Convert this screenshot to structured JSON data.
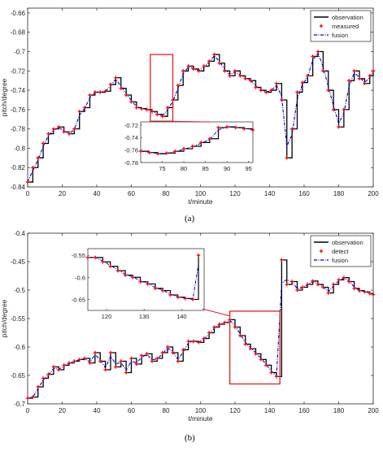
{
  "colors": {
    "observation": "#000000",
    "measured": "#ff0000",
    "fusion": "#0000cc",
    "zoom_box": "#e02020",
    "axes": "#262626"
  },
  "chart_data": [
    {
      "id": "a",
      "panel_label": "(a)",
      "type": "line",
      "xlabel": "t/minute",
      "ylabel": "pitch/degree",
      "xlim": [
        0,
        200
      ],
      "ylim": [
        -0.84,
        -0.655
      ],
      "xticks": [
        "0",
        "20",
        "40",
        "60",
        "80",
        "100",
        "120",
        "140",
        "160",
        "180",
        "200"
      ],
      "yticks": [
        "-0.84",
        "-0.82",
        "-0.8",
        "-0.78",
        "-0.76",
        "-0.74",
        "-0.72",
        "-0.7",
        "-0.68",
        "-0.66"
      ],
      "ytick_values": [
        -0.84,
        -0.82,
        -0.8,
        -0.78,
        -0.76,
        -0.74,
        -0.72,
        -0.7,
        -0.68,
        -0.66
      ],
      "legend_position": "top-right",
      "series": [
        {
          "name": "observation",
          "style": "step"
        },
        {
          "name": "measured",
          "style": "markers"
        },
        {
          "name": "fusion",
          "style": "dash-dot"
        }
      ],
      "x": [
        0,
        3,
        6,
        9,
        12,
        15,
        18,
        21,
        24,
        27,
        30,
        33,
        36,
        39,
        42,
        45,
        48,
        51,
        54,
        57,
        60,
        63,
        66,
        69,
        72,
        75,
        78,
        81,
        84,
        87,
        90,
        93,
        96,
        99,
        102,
        105,
        108,
        111,
        114,
        117,
        120,
        123,
        126,
        129,
        132,
        135,
        138,
        141,
        144,
        147,
        150,
        153,
        156,
        159,
        162,
        165,
        168,
        171,
        174,
        177,
        180,
        183,
        186,
        189,
        192,
        195,
        198,
        200
      ],
      "y": [
        -0.835,
        -0.82,
        -0.81,
        -0.795,
        -0.785,
        -0.78,
        -0.778,
        -0.783,
        -0.785,
        -0.78,
        -0.762,
        -0.758,
        -0.745,
        -0.742,
        -0.742,
        -0.741,
        -0.734,
        -0.727,
        -0.738,
        -0.745,
        -0.752,
        -0.758,
        -0.759,
        -0.76,
        -0.762,
        -0.765,
        -0.767,
        -0.758,
        -0.75,
        -0.735,
        -0.72,
        -0.715,
        -0.718,
        -0.72,
        -0.715,
        -0.71,
        -0.703,
        -0.712,
        -0.72,
        -0.725,
        -0.72,
        -0.725,
        -0.728,
        -0.73,
        -0.737,
        -0.74,
        -0.742,
        -0.74,
        -0.733,
        -0.75,
        -0.81,
        -0.78,
        -0.742,
        -0.732,
        -0.725,
        -0.705,
        -0.7,
        -0.72,
        -0.74,
        -0.76,
        -0.778,
        -0.76,
        -0.73,
        -0.72,
        -0.728,
        -0.733,
        -0.725,
        -0.72
      ],
      "inset": {
        "xlim": [
          70,
          96
        ],
        "ylim": [
          -0.78,
          -0.715
        ],
        "xticks": [
          "75",
          "80",
          "85",
          "90",
          "95"
        ],
        "xtick_values": [
          75,
          80,
          85,
          90,
          95
        ],
        "yticks": [
          "-0.72",
          "-0.74",
          "-0.76",
          "-0.78"
        ],
        "ytick_values": [
          -0.72,
          -0.74,
          -0.76,
          -0.78
        ],
        "x": [
          70,
          72,
          74,
          76,
          78,
          80,
          82,
          84,
          86,
          88,
          90,
          92,
          94,
          96
        ],
        "y": [
          -0.762,
          -0.764,
          -0.766,
          -0.765,
          -0.762,
          -0.758,
          -0.754,
          -0.748,
          -0.742,
          -0.724,
          -0.723,
          -0.724,
          -0.726,
          -0.728
        ],
        "zoom_region": {
          "x": [
            71,
            84
          ],
          "y": [
            -0.772,
            -0.703
          ]
        }
      }
    },
    {
      "id": "b",
      "panel_label": "(b)",
      "type": "line",
      "xlabel": "t/minute",
      "ylabel": "pitch/degree",
      "xlim": [
        0,
        200
      ],
      "ylim": [
        -0.7,
        -0.4
      ],
      "xticks": [
        "0",
        "20",
        "40",
        "60",
        "80",
        "100",
        "120",
        "140",
        "160",
        "180",
        "200"
      ],
      "yticks": [
        "-0.7",
        "-0.65",
        "-0.6",
        "-0.55",
        "-0.5",
        "-0.45",
        "-0.4"
      ],
      "ytick_values": [
        -0.7,
        -0.65,
        -0.6,
        -0.55,
        -0.5,
        -0.45,
        -0.4
      ],
      "legend_position": "top-right",
      "series": [
        {
          "name": "observation",
          "style": "step"
        },
        {
          "name": "detect",
          "style": "markers"
        },
        {
          "name": "fusion",
          "style": "dash-dot"
        }
      ],
      "x": [
        0,
        3,
        6,
        9,
        12,
        15,
        18,
        21,
        24,
        27,
        30,
        33,
        36,
        39,
        42,
        45,
        48,
        51,
        54,
        57,
        60,
        63,
        66,
        69,
        72,
        75,
        78,
        81,
        84,
        87,
        90,
        93,
        96,
        99,
        102,
        105,
        108,
        111,
        114,
        117,
        120,
        123,
        126,
        129,
        132,
        135,
        138,
        141,
        144,
        147,
        150,
        153,
        156,
        159,
        162,
        165,
        168,
        171,
        174,
        177,
        180,
        183,
        186,
        189,
        192,
        195,
        198,
        200
      ],
      "y": [
        -0.69,
        -0.688,
        -0.67,
        -0.655,
        -0.648,
        -0.635,
        -0.64,
        -0.632,
        -0.628,
        -0.625,
        -0.622,
        -0.62,
        -0.628,
        -0.61,
        -0.625,
        -0.64,
        -0.61,
        -0.635,
        -0.625,
        -0.645,
        -0.62,
        -0.63,
        -0.615,
        -0.612,
        -0.625,
        -0.62,
        -0.61,
        -0.6,
        -0.61,
        -0.625,
        -0.605,
        -0.59,
        -0.59,
        -0.592,
        -0.585,
        -0.575,
        -0.565,
        -0.56,
        -0.557,
        -0.552,
        -0.565,
        -0.58,
        -0.595,
        -0.603,
        -0.612,
        -0.622,
        -0.632,
        -0.645,
        -0.652,
        -0.447,
        -0.49,
        -0.485,
        -0.5,
        -0.495,
        -0.49,
        -0.484,
        -0.49,
        -0.495,
        -0.505,
        -0.49,
        -0.482,
        -0.478,
        -0.485,
        -0.497,
        -0.501,
        -0.503,
        -0.506,
        -0.508
      ],
      "inset": {
        "xlim": [
          115,
          146
        ],
        "ylim": [
          -0.675,
          -0.535
        ],
        "xticks": [
          "120",
          "130",
          "140"
        ],
        "xtick_values": [
          120,
          130,
          140
        ],
        "yticks": [
          "-0.55",
          "-0.6",
          "-0.65"
        ],
        "ytick_values": [
          -0.55,
          -0.6,
          -0.65
        ],
        "x": [
          115,
          117,
          119,
          121,
          123,
          125,
          127,
          129,
          131,
          133,
          135,
          137,
          139,
          141,
          143,
          144.5
        ],
        "y": [
          -0.555,
          -0.555,
          -0.565,
          -0.575,
          -0.585,
          -0.595,
          -0.6,
          -0.61,
          -0.615,
          -0.625,
          -0.63,
          -0.64,
          -0.645,
          -0.648,
          -0.65,
          -0.55
        ],
        "zoom_region": {
          "x": [
            117,
            146
          ],
          "y": [
            -0.665,
            -0.537
          ]
        }
      }
    }
  ]
}
